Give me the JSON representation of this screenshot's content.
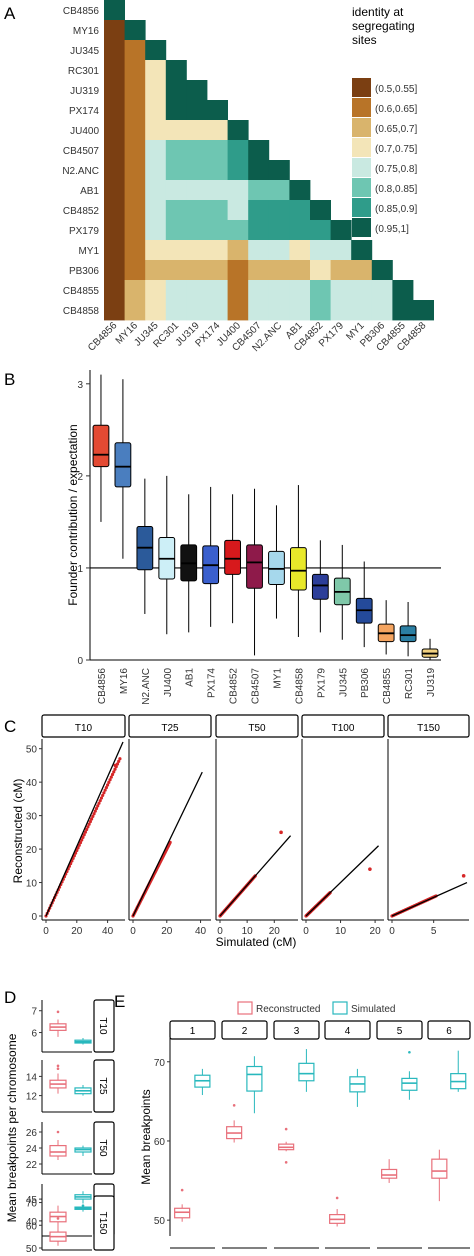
{
  "panels": {
    "A": "A",
    "B": "B",
    "C": "C",
    "D": "D",
    "E": "E"
  },
  "colors": {
    "CB4856": "#e34a33",
    "MY16": "#4a7ebf",
    "N2.ANC": "#2b5a9a",
    "JU400": "#cdeff7",
    "AB1": "#111111",
    "PX174": "#3a5fcd",
    "CB4852": "#d7191c",
    "CB4507": "#8e1a4a",
    "MY1": "#a6d8ec",
    "CB4858": "#e8e82a",
    "PX179": "#2c3e99",
    "JU345": "#7fc8a9",
    "PB306": "#244a9a",
    "CB4855": "#f4a460",
    "RC301": "#2b7fa3",
    "JU319": "#f0d080",
    "reconstructed": "#e8707b",
    "simulated": "#28b8bd",
    "sim_points": "#d62728"
  },
  "chart_data": [
    {
      "panel": "A",
      "type": "heatmap",
      "rows": [
        "CB4856",
        "MY16",
        "JU345",
        "RC301",
        "JU319",
        "PX174",
        "JU400",
        "CB4507",
        "N2.ANC",
        "AB1",
        "CB4852",
        "PX179",
        "MY1",
        "PB306",
        "CB4855",
        "CB4858"
      ],
      "cols": [
        "CB4856",
        "MY16",
        "JU345",
        "RC301",
        "JU319",
        "PX174",
        "JU400",
        "CB4507",
        "N2.ANC",
        "AB1",
        "CB4852",
        "PX179",
        "MY1",
        "PB306",
        "CB4855",
        "CB4858"
      ],
      "legend_title": "identity at segregating sites",
      "bins": [
        "(0.5,0.55]",
        "(0.6,0.65]",
        "(0.65,0.7]",
        "(0.7,0.75]",
        "(0.75,0.8]",
        "(0.8,0.85]",
        "(0.85,0.9]",
        "(0.95,1]"
      ],
      "bin_colors": [
        "#7b3f12",
        "#b87428",
        "#d9b46c",
        "#f3e5b8",
        "#c9e9e1",
        "#6ec6b2",
        "#2f9c8a",
        "#0c5d4c"
      ],
      "matrix": [
        [
          7
        ],
        [
          0,
          7
        ],
        [
          0,
          1,
          7
        ],
        [
          0,
          1,
          3,
          7
        ],
        [
          0,
          1,
          3,
          7,
          7
        ],
        [
          0,
          1,
          3,
          7,
          7,
          7
        ],
        [
          0,
          1,
          3,
          3,
          3,
          3,
          7
        ],
        [
          0,
          1,
          4,
          5,
          5,
          5,
          6,
          7
        ],
        [
          0,
          1,
          4,
          5,
          5,
          5,
          6,
          7,
          7
        ],
        [
          0,
          1,
          4,
          4,
          4,
          4,
          4,
          5,
          5,
          7
        ],
        [
          0,
          1,
          4,
          5,
          5,
          5,
          4,
          6,
          6,
          6,
          7
        ],
        [
          0,
          1,
          4,
          5,
          5,
          5,
          5,
          6,
          6,
          6,
          6,
          7
        ],
        [
          0,
          1,
          3,
          3,
          3,
          3,
          2,
          4,
          4,
          3,
          4,
          4,
          7
        ],
        [
          0,
          1,
          2,
          2,
          2,
          2,
          1,
          2,
          2,
          2,
          3,
          2,
          2,
          7
        ],
        [
          0,
          2,
          3,
          4,
          4,
          4,
          1,
          4,
          4,
          4,
          5,
          4,
          4,
          4,
          7
        ],
        [
          0,
          2,
          3,
          4,
          4,
          4,
          1,
          4,
          4,
          4,
          5,
          4,
          4,
          4,
          7,
          7
        ]
      ]
    },
    {
      "panel": "B",
      "type": "box",
      "ylabel": "Founder contribution / expectation",
      "ylim": [
        0,
        3.15
      ],
      "yticks": [
        0,
        1,
        2,
        3
      ],
      "reference_line": 1,
      "categories": [
        "CB4856",
        "MY16",
        "N2.ANC",
        "JU400",
        "AB1",
        "PX174",
        "CB4852",
        "CB4507",
        "MY1",
        "CB4858",
        "PX179",
        "JU345",
        "PB306",
        "CB4855",
        "RC301",
        "JU319"
      ],
      "boxes": [
        {
          "min": 1.5,
          "q1": 2.1,
          "median": 2.23,
          "q3": 2.55,
          "max": 3.1
        },
        {
          "min": 1.1,
          "q1": 1.88,
          "median": 2.1,
          "q3": 2.36,
          "max": 3.05
        },
        {
          "min": 0.5,
          "q1": 0.98,
          "median": 1.22,
          "q3": 1.45,
          "max": 1.97
        },
        {
          "min": 0.28,
          "q1": 0.88,
          "median": 1.1,
          "q3": 1.33,
          "max": 2.0
        },
        {
          "min": 0.3,
          "q1": 0.86,
          "median": 1.05,
          "q3": 1.25,
          "max": 1.8
        },
        {
          "min": 0.36,
          "q1": 0.83,
          "median": 1.03,
          "q3": 1.24,
          "max": 1.88
        },
        {
          "min": 0.4,
          "q1": 0.93,
          "median": 1.1,
          "q3": 1.3,
          "max": 1.8
        },
        {
          "min": 0.05,
          "q1": 0.78,
          "median": 1.06,
          "q3": 1.25,
          "max": 1.86
        },
        {
          "min": 0.45,
          "q1": 0.82,
          "median": 0.99,
          "q3": 1.18,
          "max": 1.68
        },
        {
          "min": 0.25,
          "q1": 0.76,
          "median": 0.97,
          "q3": 1.22,
          "max": 1.9
        },
        {
          "min": 0.3,
          "q1": 0.66,
          "median": 0.81,
          "q3": 0.93,
          "max": 1.3
        },
        {
          "min": 0.22,
          "q1": 0.6,
          "median": 0.74,
          "q3": 0.89,
          "max": 1.25
        },
        {
          "min": 0.14,
          "q1": 0.4,
          "median": 0.54,
          "q3": 0.67,
          "max": 1.07
        },
        {
          "min": 0.06,
          "q1": 0.2,
          "median": 0.29,
          "q3": 0.39,
          "max": 0.65
        },
        {
          "min": 0.04,
          "q1": 0.2,
          "median": 0.27,
          "q3": 0.37,
          "max": 0.63
        },
        {
          "min": 0.0,
          "q1": 0.03,
          "median": 0.07,
          "q3": 0.12,
          "max": 0.23
        }
      ]
    },
    {
      "panel": "C",
      "type": "scatter",
      "xlabel": "Simulated (cM)",
      "ylabel": "Reconstructed (cM)",
      "ylim": [
        0,
        52
      ],
      "yticks": [
        0,
        10,
        20,
        30,
        40,
        50
      ],
      "facets": [
        {
          "label": "T10",
          "xlim": [
            0,
            50
          ],
          "xticks": [
            0,
            20,
            40
          ],
          "line_end": [
            50,
            52
          ],
          "points_end": [
            48,
            47
          ],
          "outliers": [
            [
              45,
              45
            ]
          ]
        },
        {
          "label": "T25",
          "xlim": [
            0,
            45
          ],
          "xticks": [
            0,
            20,
            40
          ],
          "line_end": [
            41,
            43
          ],
          "points_end": [
            22,
            22
          ],
          "outliers": []
        },
        {
          "label": "T50",
          "xlim": [
            0,
            28
          ],
          "xticks": [
            0,
            10,
            20
          ],
          "line_end": [
            26,
            24
          ],
          "points_end": [
            13,
            12
          ],
          "outliers": [
            [
              22.5,
              25
            ]
          ]
        },
        {
          "label": "T100",
          "xlim": [
            0,
            22
          ],
          "xticks": [
            0,
            10,
            20
          ],
          "line_end": [
            21,
            21
          ],
          "points_end": [
            7,
            7
          ],
          "outliers": [
            [
              18.5,
              14
            ]
          ]
        },
        {
          "label": "T150",
          "xlim": [
            0,
            9
          ],
          "xticks": [
            0,
            5
          ],
          "line_end": [
            9,
            10
          ],
          "points_end": [
            5.3,
            6
          ],
          "outliers": [
            [
              8.6,
              12
            ]
          ]
        }
      ]
    },
    {
      "panel": "D",
      "type": "box",
      "ylabel": "Mean breakpoints per chromosome",
      "series": [
        "Reconstructed",
        "Simulated"
      ],
      "facets": [
        {
          "label": "T10",
          "ylim": [
            5.2,
            7.4
          ],
          "yticks": [
            6,
            7
          ],
          "reconstructed": {
            "min": 5.8,
            "q1": 6.1,
            "median": 6.25,
            "q3": 6.4,
            "max": 6.6,
            "outliers": [
              6.95
            ]
          },
          "simulated": {
            "min": 5.45,
            "q1": 5.52,
            "median": 5.58,
            "q3": 5.65,
            "max": 5.75,
            "outliers": []
          }
        },
        {
          "label": "T25",
          "ylim": [
            10.5,
            15.5
          ],
          "yticks": [
            12,
            14
          ],
          "reconstructed": {
            "min": 12.2,
            "q1": 12.8,
            "median": 13.2,
            "q3": 13.6,
            "max": 14.3,
            "outliers": [
              14.8,
              15.1
            ]
          },
          "simulated": {
            "min": 12.0,
            "q1": 12.2,
            "median": 12.5,
            "q3": 12.8,
            "max": 13.1,
            "outliers": []
          }
        },
        {
          "label": "T50",
          "ylim": [
            21,
            27
          ],
          "yticks": [
            22,
            24,
            26
          ],
          "reconstructed": {
            "min": 22.5,
            "q1": 23.0,
            "median": 23.5,
            "q3": 24.3,
            "max": 25.0,
            "outliers": [
              26.0
            ]
          },
          "simulated": {
            "min": 23.0,
            "q1": 23.5,
            "median": 23.8,
            "q3": 24.0,
            "max": 24.3,
            "outliers": []
          }
        },
        {
          "label": "T100",
          "ylim": [
            37,
            48
          ],
          "yticks": [
            40,
            45
          ],
          "reconstructed": {
            "min": 38.5,
            "q1": 39.8,
            "median": 41.0,
            "q3": 42.0,
            "max": 43.5,
            "outliers": []
          },
          "simulated": {
            "min": 44.0,
            "q1": 45.0,
            "median": 45.5,
            "q3": 46.0,
            "max": 46.8,
            "outliers": [
              43.5
            ]
          }
        },
        {
          "label": "T150",
          "ylim": [
            50,
            72
          ],
          "yticks": [
            50,
            60,
            70
          ],
          "reconstructed": {
            "min": 51,
            "q1": 53,
            "median": 55,
            "q3": 57,
            "max": 60,
            "outliers": [
              63
            ]
          },
          "simulated": {
            "min": 66,
            "q1": 67,
            "median": 67.5,
            "q3": 68,
            "max": 69,
            "outliers": []
          }
        }
      ]
    },
    {
      "panel": "E",
      "type": "box",
      "ylabel": "Mean breakpoints",
      "legend": [
        "Reconstructed",
        "Simulated"
      ],
      "ylim": [
        48,
        73
      ],
      "yticks": [
        50,
        60,
        70
      ],
      "facets": [
        {
          "label": "1",
          "reconstructed": {
            "min": 49.8,
            "q1": 50.3,
            "median": 51.0,
            "q3": 51.5,
            "max": 52.0,
            "outliers": [
              53.8
            ]
          },
          "simulated": {
            "min": 65.8,
            "q1": 66.8,
            "median": 67.6,
            "q3": 68.3,
            "max": 69.1,
            "outliers": []
          }
        },
        {
          "label": "2",
          "reconstructed": {
            "min": 59.8,
            "q1": 60.3,
            "median": 61.0,
            "q3": 61.8,
            "max": 62.6,
            "outliers": [
              64.5
            ]
          },
          "simulated": {
            "min": 63.5,
            "q1": 66.3,
            "median": 68.4,
            "q3": 69.4,
            "max": 70.7,
            "outliers": []
          }
        },
        {
          "label": "3",
          "reconstructed": {
            "min": 58.7,
            "q1": 58.9,
            "median": 59.2,
            "q3": 59.6,
            "max": 59.9,
            "outliers": [
              57.3,
              61.5
            ]
          },
          "simulated": {
            "min": 66.2,
            "q1": 67.6,
            "median": 68.5,
            "q3": 69.8,
            "max": 71.6,
            "outliers": []
          }
        },
        {
          "label": "4",
          "reconstructed": {
            "min": 49.2,
            "q1": 49.6,
            "median": 50.1,
            "q3": 50.7,
            "max": 51.4,
            "outliers": [
              52.8
            ]
          },
          "simulated": {
            "min": 64.3,
            "q1": 66.2,
            "median": 67.2,
            "q3": 68.1,
            "max": 69.1,
            "outliers": []
          }
        },
        {
          "label": "5",
          "reconstructed": {
            "min": 54.7,
            "q1": 55.3,
            "median": 55.7,
            "q3": 56.4,
            "max": 57.7,
            "outliers": []
          },
          "simulated": {
            "min": 65.2,
            "q1": 66.4,
            "median": 67.3,
            "q3": 67.9,
            "max": 68.8,
            "outliers": [
              71.2
            ]
          }
        },
        {
          "label": "6",
          "reconstructed": {
            "min": 52.4,
            "q1": 55.3,
            "median": 56.2,
            "q3": 57.7,
            "max": 58.9,
            "outliers": []
          },
          "simulated": {
            "min": 66.2,
            "q1": 66.6,
            "median": 67.5,
            "q3": 68.5,
            "max": 71.4,
            "outliers": []
          }
        }
      ]
    }
  ]
}
